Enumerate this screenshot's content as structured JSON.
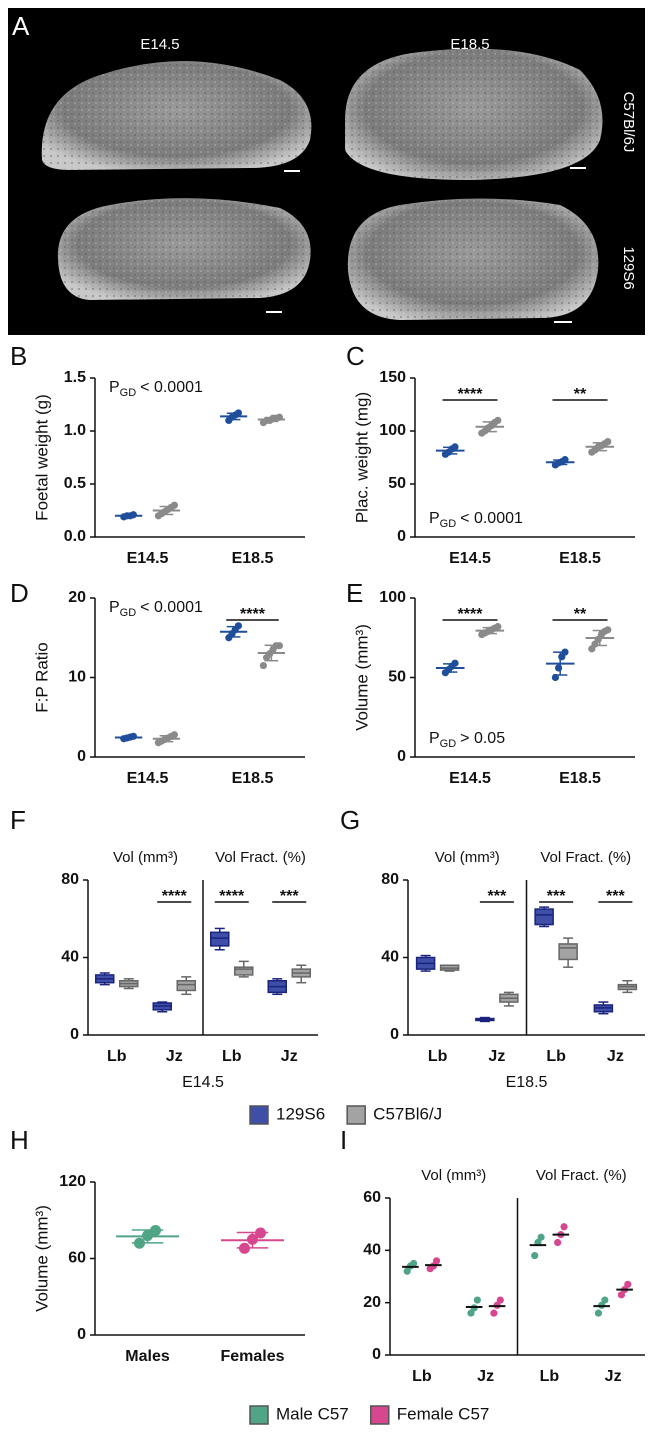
{
  "panel_a": {
    "label": "A",
    "columns": [
      "E14.5",
      "E18.5"
    ],
    "rows": [
      "C57Bl/6J",
      "129S6"
    ]
  },
  "chart_data": [
    {
      "type": "dot",
      "title": "B",
      "ylabel": "Foetal weight (g)",
      "categories": [
        "E14.5",
        "E18.5"
      ],
      "series": [
        {
          "color": "#1f4e9a",
          "values": [
            [
              0.19,
              0.2,
              0.2,
              0.21
            ],
            [
              1.1,
              1.13,
              1.15,
              1.17
            ]
          ]
        },
        {
          "color": "#8a8a8a",
          "values": [
            [
              0.2,
              0.22,
              0.24,
              0.26,
              0.28,
              0.3
            ],
            [
              1.08,
              1.1,
              1.1,
              1.12,
              1.12,
              1.13
            ]
          ]
        }
      ],
      "ylim": [
        0,
        1.5
      ],
      "yticks": [
        {
          "value": 0,
          "label": "0.0"
        },
        0.5,
        {
          "value": 1,
          "label": "1.0"
        },
        1.5
      ],
      "error_bars": true,
      "annotation": {
        "main": "P",
        "sub": "GD",
        "text": "< 0.0001"
      },
      "annotation_position": "top-left"
    },
    {
      "type": "dot",
      "title": "C",
      "ylabel": "Plac. weight (mg)",
      "categories": [
        "E14.5",
        "E18.5"
      ],
      "series": [
        {
          "color": "#1f4e9a",
          "values": [
            [
              78,
              80,
              83,
              85
            ],
            [
              68,
              70,
              71,
              73
            ]
          ]
        },
        {
          "color": "#8a8a8a",
          "values": [
            [
              98,
              100,
              103,
              105,
              108,
              110
            ],
            [
              80,
              82,
              85,
              86,
              88,
              90
            ]
          ]
        }
      ],
      "ylim": [
        0,
        150
      ],
      "yticks": [
        0,
        50,
        100,
        150
      ],
      "significance": [
        "****",
        "**"
      ],
      "error_bars": true,
      "annotation": {
        "main": "P",
        "sub": "GD",
        "text": "< 0.0001"
      },
      "annotation_position": "bottom-left"
    },
    {
      "type": "dot",
      "title": "D",
      "ylabel": "F:P Ratio",
      "categories": [
        "E14.5",
        "E18.5"
      ],
      "series": [
        {
          "color": "#1f4e9a",
          "values": [
            [
              2.3,
              2.4,
              2.5,
              2.6
            ],
            [
              15,
              15.5,
              16,
              16.5
            ]
          ]
        },
        {
          "color": "#8a8a8a",
          "values": [
            [
              1.8,
              2,
              2.2,
              2.4,
              2.6,
              2.8
            ],
            [
              11.5,
              12.5,
              13,
              13.5,
              14,
              14
            ]
          ]
        }
      ],
      "ylim": [
        0,
        20
      ],
      "yticks": [
        0,
        10,
        20
      ],
      "significance": [
        null,
        "****"
      ],
      "error_bars": true,
      "annotation": {
        "main": "P",
        "sub": "GD",
        "text": "< 0.0001"
      },
      "annotation_position": "top-left"
    },
    {
      "type": "dot",
      "title": "E",
      "ylabel": "Volume (mm³)",
      "categories": [
        "E14.5",
        "E18.5"
      ],
      "series": [
        {
          "color": "#1f4e9a",
          "values": [
            [
              53,
              55,
              57,
              59
            ],
            [
              50,
              56,
              63,
              66
            ]
          ]
        },
        {
          "color": "#8a8a8a",
          "values": [
            [
              77,
              78,
              79,
              80,
              81,
              82
            ],
            [
              68,
              71,
              74,
              77,
              79,
              80
            ]
          ]
        }
      ],
      "ylim": [
        0,
        100
      ],
      "yticks": [
        0,
        50,
        100
      ],
      "significance": [
        "****",
        "**"
      ],
      "error_bars": true,
      "annotation": {
        "main": "P",
        "sub": "GD",
        "text": "> 0.05"
      },
      "annotation_position": "bottom-left"
    },
    {
      "type": "box",
      "title": "F",
      "xlabel": "E14.5",
      "groups": [
        "Vol (mm³)",
        "Vol Fract. (%)"
      ],
      "categories": [
        "Lb",
        "Jz",
        "Lb",
        "Jz"
      ],
      "series": [
        {
          "name": "129S6",
          "color": "#3f4fa8",
          "values": [
            {
              "min": 26,
              "q1": 27,
              "median": 29,
              "q3": 31,
              "max": 32
            },
            {
              "min": 12,
              "q1": 13,
              "median": 15,
              "q3": 16.5,
              "max": 17
            },
            {
              "min": 44,
              "q1": 46,
              "median": 50,
              "q3": 53,
              "max": 55
            },
            {
              "min": 21,
              "q1": 22,
              "median": 25,
              "q3": 28,
              "max": 29
            }
          ]
        },
        {
          "name": "C57Bl6/J",
          "color": "#a3a3a3",
          "values": [
            {
              "min": 24,
              "q1": 25,
              "median": 26.5,
              "q3": 28,
              "max": 29
            },
            {
              "min": 21,
              "q1": 23,
              "median": 26,
              "q3": 28,
              "max": 30
            },
            {
              "min": 30,
              "q1": 31,
              "median": 34,
              "q3": 35,
              "max": 38
            },
            {
              "min": 27,
              "q1": 30,
              "median": 32,
              "q3": 34,
              "max": 36
            }
          ]
        }
      ],
      "ylim": [
        0,
        80
      ],
      "yticks": [
        0,
        40,
        80
      ],
      "significance": [
        null,
        "****",
        "****",
        "***"
      ]
    },
    {
      "type": "box",
      "title": "G",
      "xlabel": "E18.5",
      "groups": [
        "Vol (mm³)",
        "Vol Fract. (%)"
      ],
      "categories": [
        "Lb",
        "Jz",
        "Lb",
        "Jz"
      ],
      "series": [
        {
          "color": "#3f4fa8",
          "values": [
            {
              "min": 33,
              "q1": 34,
              "median": 37,
              "q3": 40,
              "max": 41
            },
            {
              "min": 7,
              "q1": 7.5,
              "median": 8,
              "q3": 8.5,
              "max": 9
            },
            {
              "min": 56,
              "q1": 57,
              "median": 62,
              "q3": 65,
              "max": 66
            },
            {
              "min": 11,
              "q1": 12,
              "median": 14,
              "q3": 15.5,
              "max": 17
            }
          ]
        },
        {
          "color": "#a3a3a3",
          "values": [
            {
              "min": 33,
              "q1": 33.5,
              "median": 34.5,
              "q3": 36,
              "max": 36
            },
            {
              "min": 15,
              "q1": 17,
              "median": 19,
              "q3": 21,
              "max": 22
            },
            {
              "min": 35,
              "q1": 39,
              "median": 45,
              "q3": 47,
              "max": 50
            },
            {
              "min": 22,
              "q1": 23.5,
              "median": 25,
              "q3": 26,
              "max": 28
            }
          ]
        }
      ],
      "ylim": [
        0,
        80
      ],
      "yticks": [
        0,
        40,
        80
      ],
      "significance": [
        null,
        "***",
        "***",
        "***"
      ]
    },
    {
      "type": "dot",
      "title": "H",
      "ylabel": "Volume (mm³)",
      "categories": [
        "Males",
        "Females"
      ],
      "values": [
        [
          72,
          78,
          82
        ],
        [
          68,
          75,
          80
        ]
      ],
      "colors": [
        "#4fa585",
        "#d6478f"
      ],
      "ylim": [
        0,
        120
      ],
      "yticks": [
        0,
        60,
        120
      ],
      "error_bars": true
    },
    {
      "type": "dot",
      "title": "I",
      "groups": [
        "Vol (mm³)",
        "Vol Fract. (%)"
      ],
      "categories": [
        "Lb",
        "Jz",
        "Lb",
        "Jz"
      ],
      "series": [
        {
          "name": "Male C57",
          "color": "#4fa585",
          "values": [
            [
              32,
              34,
              35
            ],
            [
              16,
              18,
              21
            ],
            [
              38,
              43,
              45
            ],
            [
              16,
              19,
              21
            ]
          ]
        },
        {
          "name": "Female C57",
          "color": "#d6478f",
          "values": [
            [
              33,
              34,
              36
            ],
            [
              16,
              19,
              21
            ],
            [
              43,
              46,
              49
            ],
            [
              23,
              25,
              27
            ]
          ]
        }
      ],
      "ylim": [
        0,
        60
      ],
      "yticks": [
        0,
        20,
        40,
        60
      ],
      "error_bars": false
    }
  ]
}
